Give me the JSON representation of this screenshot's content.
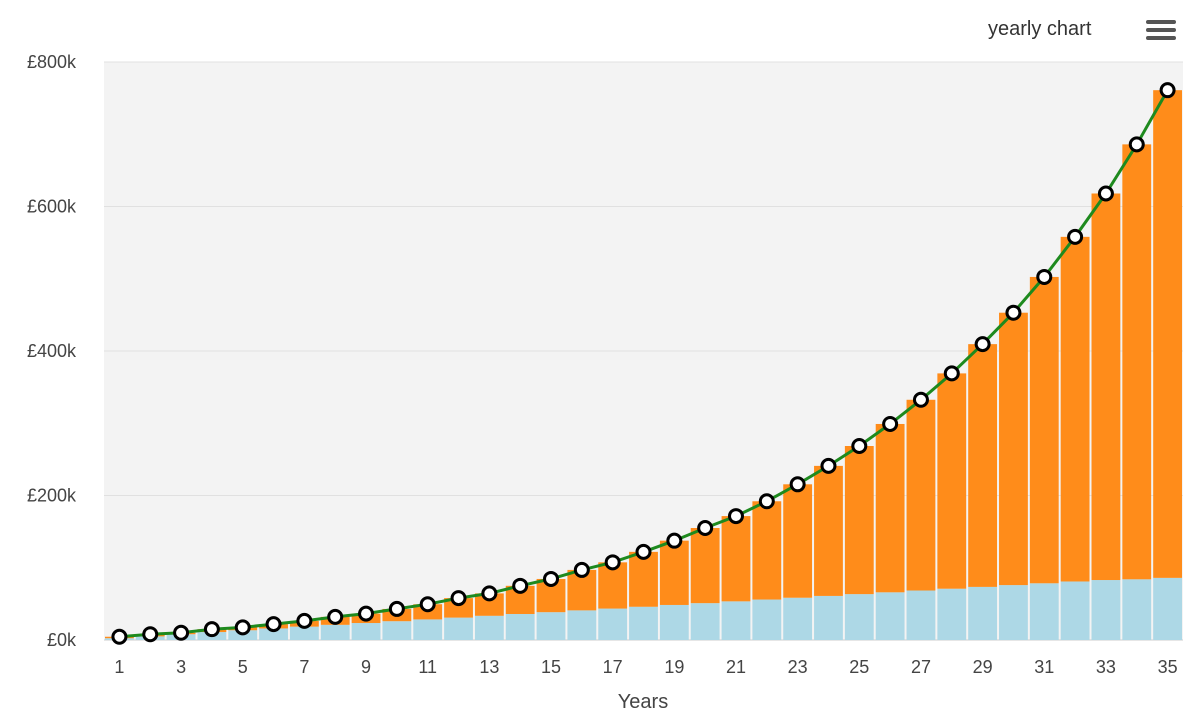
{
  "header": {
    "title": "yearly chart",
    "menu_icon": "hamburger-menu-icon"
  },
  "colors": {
    "plot_background": "#f3f3f3",
    "contributions": "#add8e6",
    "growth": "#ff8c1a",
    "total_line": "#1e8a1e",
    "marker_fill": "#ffffff",
    "marker_stroke": "#000000",
    "gridline": "#e0e0e0"
  },
  "chart_data": {
    "type": "bar",
    "stacked": true,
    "xlabel": "Years",
    "ylabel": "",
    "ylim": [
      0,
      800000
    ],
    "y_ticks": [
      0,
      200000,
      400000,
      600000,
      800000
    ],
    "y_tick_labels": [
      "£0k",
      "£200k",
      "£400k",
      "£600k",
      "£800k"
    ],
    "x_tick_labels": [
      "1",
      "3",
      "5",
      "7",
      "9",
      "11",
      "13",
      "15",
      "17",
      "19",
      "21",
      "23",
      "25",
      "27",
      "29",
      "31",
      "33",
      "35"
    ],
    "categories": [
      1,
      2,
      3,
      4,
      5,
      6,
      7,
      8,
      9,
      10,
      11,
      12,
      13,
      14,
      15,
      16,
      17,
      18,
      19,
      20,
      21,
      22,
      23,
      24,
      25,
      26,
      27,
      28,
      29,
      30,
      31,
      32,
      33,
      34,
      35
    ],
    "grid": true,
    "series": [
      {
        "values": [
          2500,
          5000,
          8000,
          11000,
          13500,
          16000,
          18500,
          21000,
          23500,
          26000,
          28500,
          31000,
          33500,
          36000,
          38500,
          41000,
          43500,
          46000,
          48500,
          51000,
          53500,
          56000,
          58500,
          61000,
          63500,
          66000,
          68500,
          71000,
          73500,
          76000,
          78500,
          81000,
          83000,
          84000,
          86000
        ]
      },
      {
        "values": [
          2000,
          3000,
          2000,
          4000,
          4000,
          6000,
          8000,
          11000,
          13000,
          17000,
          21000,
          27000,
          31000,
          39000,
          46000,
          56000,
          64000,
          76000,
          89000,
          104000,
          118000,
          136000,
          157000,
          180000,
          205000,
          233000,
          264000,
          298000,
          336000,
          377000,
          424000,
          477000,
          535000,
          602000,
          675000
        ]
      },
      {
        "type": "line",
        "values": [
          4500,
          8000,
          10000,
          15000,
          17500,
          22000,
          26500,
          32000,
          36500,
          43000,
          49500,
          58000,
          64500,
          75000,
          84500,
          97000,
          107500,
          122000,
          137500,
          155000,
          171500,
          192000,
          215500,
          241000,
          268500,
          299000,
          332500,
          369000,
          409500,
          453000,
          502500,
          558000,
          618000,
          686000,
          761000
        ]
      }
    ]
  }
}
